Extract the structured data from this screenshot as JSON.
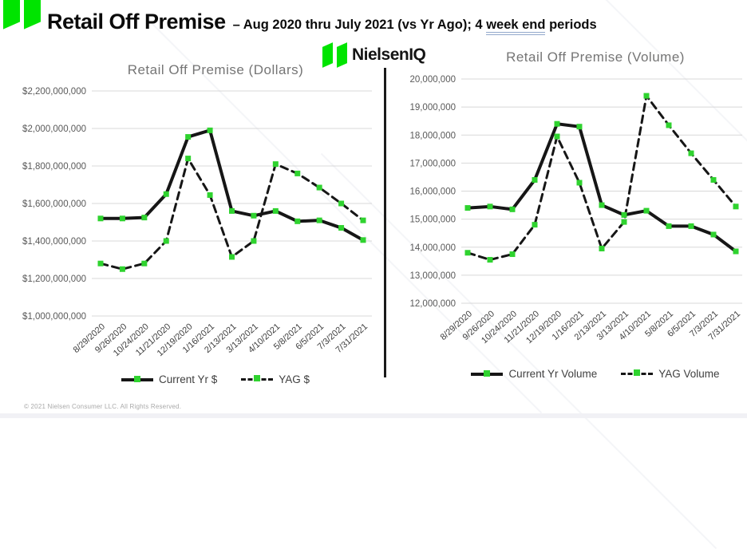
{
  "page": {
    "header": {
      "title": "Retail Off Premise",
      "subtitle_prefix": "– Aug 2020 thru July 2021 (vs Yr Ago); 4 ",
      "subtitle_underlined": "week end",
      "subtitle_suffix": " periods"
    },
    "brand": {
      "name": "NielsenIQ",
      "logo_icon": "niq-double-parallelogram-icon"
    },
    "footer": {
      "copyright": "© 2021 Nielsen Consumer LLC. All Rights Reserved."
    }
  },
  "colors": {
    "logo_green": "#00e400",
    "marker_green": "#2fd32f",
    "line_black": "#161616",
    "grid_gray": "#d8d8d8",
    "axis_label_gray": "#595959",
    "x_label_gray": "#3d3d3d",
    "title_gray": "#757575",
    "underline_blue": "#93a9cc"
  },
  "chart_data": [
    {
      "type": "line",
      "title": "Retail Off Premise (Dollars)",
      "categories": [
        "8/29/2020",
        "9/26/2020",
        "10/24/2020",
        "11/21/2020",
        "12/19/2020",
        "1/16/2021",
        "2/13/2021",
        "3/13/2021",
        "4/10/2021",
        "5/8/2021",
        "6/5/2021",
        "7/3/2021",
        "7/31/2021"
      ],
      "series": [
        {
          "name": "Current Yr $",
          "style": "solid",
          "values": [
            1520000000,
            1520000000,
            1525000000,
            1650000000,
            1955000000,
            1990000000,
            1560000000,
            1535000000,
            1560000000,
            1505000000,
            1510000000,
            1470000000,
            1405000000
          ]
        },
        {
          "name": "YAG $",
          "style": "dashed",
          "values": [
            1280000000,
            1250000000,
            1280000000,
            1400000000,
            1840000000,
            1645000000,
            1315000000,
            1400000000,
            1810000000,
            1760000000,
            1685000000,
            1600000000,
            1510000000
          ]
        }
      ],
      "ylim": [
        1000000000,
        2200000000
      ],
      "yticks": [
        1000000000,
        1200000000,
        1400000000,
        1600000000,
        1800000000,
        2000000000,
        2200000000
      ],
      "ytick_labels": [
        "$1,000,000,000",
        "$1,200,000,000",
        "$1,400,000,000",
        "$1,600,000,000",
        "$1,800,000,000",
        "$2,000,000,000",
        "$2,200,000,000"
      ],
      "grid": "horizontal",
      "legend_position": "bottom"
    },
    {
      "type": "line",
      "title": "Retail Off Premise (Volume)",
      "categories": [
        "8/29/2020",
        "9/26/2020",
        "10/24/2020",
        "11/21/2020",
        "12/19/2020",
        "1/16/2021",
        "2/13/2021",
        "3/13/2021",
        "4/10/2021",
        "5/8/2021",
        "6/5/2021",
        "7/3/2021",
        "7/31/2021"
      ],
      "series": [
        {
          "name": "Current Yr Volume",
          "style": "solid",
          "values": [
            15400000,
            15450000,
            15350000,
            16400000,
            18400000,
            18300000,
            15500000,
            15150000,
            15300000,
            14750000,
            14750000,
            14450000,
            13850000
          ]
        },
        {
          "name": "YAG Volume",
          "style": "dashed",
          "values": [
            13800000,
            13550000,
            13750000,
            14800000,
            17950000,
            16300000,
            13950000,
            14900000,
            19400000,
            18350000,
            17350000,
            16400000,
            15450000
          ]
        }
      ],
      "ylim": [
        12000000,
        20000000
      ],
      "yticks": [
        12000000,
        13000000,
        14000000,
        15000000,
        16000000,
        17000000,
        18000000,
        19000000,
        20000000
      ],
      "ytick_labels": [
        "12,000,000",
        "13,000,000",
        "14,000,000",
        "15,000,000",
        "16,000,000",
        "17,000,000",
        "18,000,000",
        "19,000,000",
        "20,000,000"
      ],
      "grid": "horizontal",
      "legend_position": "bottom"
    }
  ]
}
